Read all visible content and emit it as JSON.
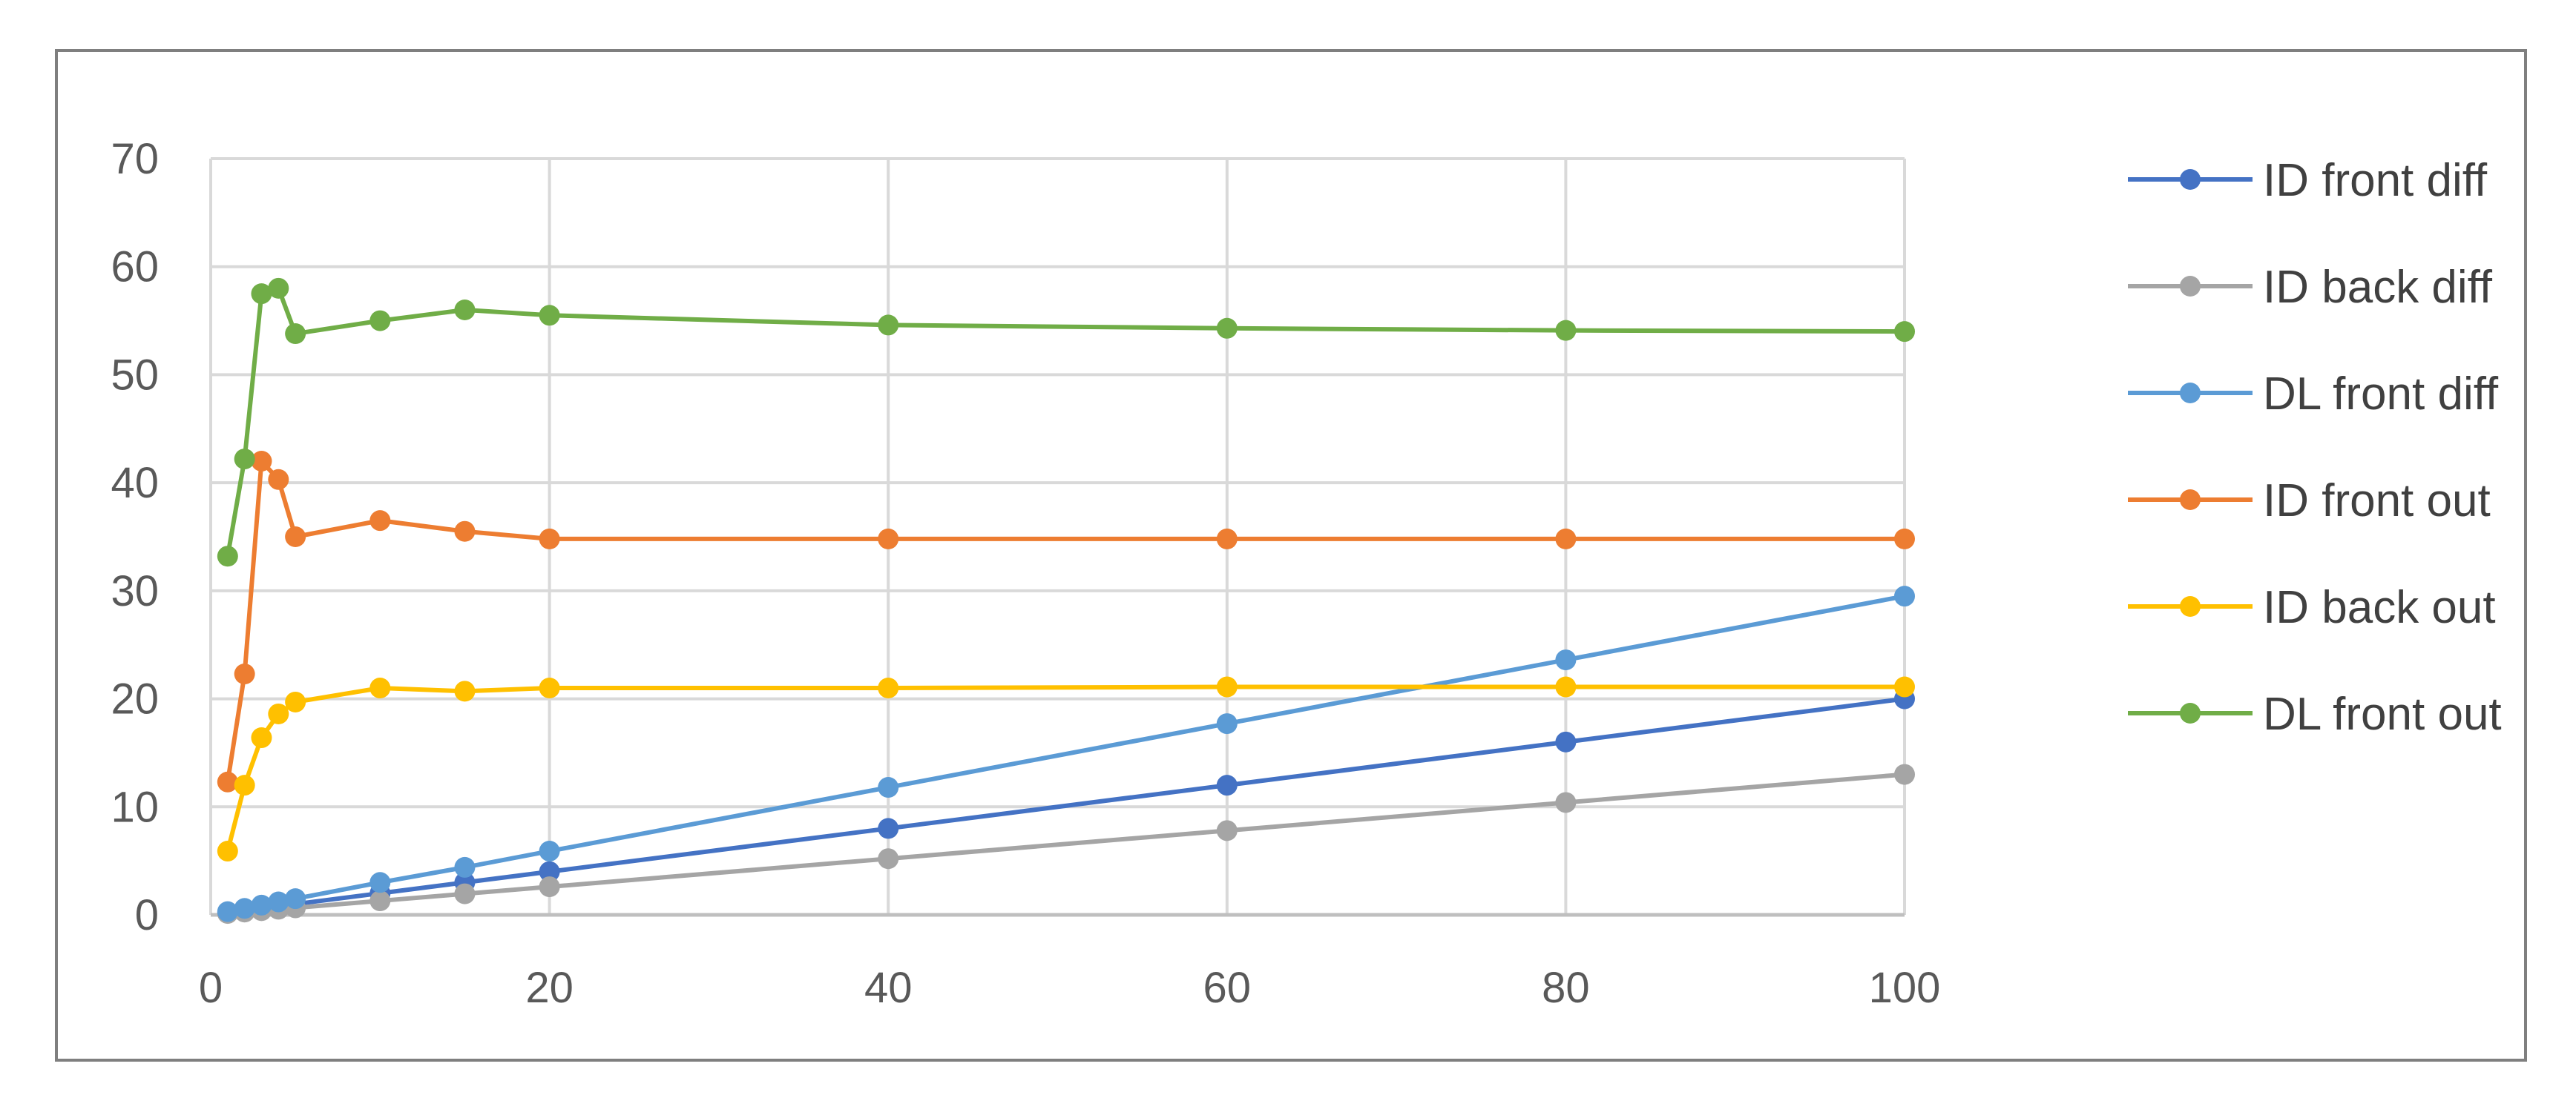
{
  "chart_data": {
    "type": "line",
    "title": "",
    "xlabel": "",
    "ylabel": "",
    "xlim": [
      0,
      100
    ],
    "ylim": [
      0,
      70
    ],
    "x_ticks": [
      0,
      20,
      40,
      60,
      80,
      100
    ],
    "y_ticks": [
      0,
      10,
      20,
      30,
      40,
      50,
      60,
      70
    ],
    "grid": true,
    "legend_position": "right",
    "x": [
      1,
      2,
      3,
      4,
      5,
      10,
      15,
      20,
      40,
      60,
      80,
      100
    ],
    "series": [
      {
        "name": "ID front diff",
        "color": "#4472C4",
        "values": [
          0.2,
          0.4,
          0.6,
          0.8,
          1.0,
          2.0,
          3.0,
          4.0,
          8.0,
          12.0,
          16.0,
          20.0
        ]
      },
      {
        "name": "ID back diff",
        "color": "#A5A5A5",
        "values": [
          0.13,
          0.26,
          0.39,
          0.52,
          0.65,
          1.3,
          1.95,
          2.6,
          5.2,
          7.8,
          10.4,
          13.0
        ]
      },
      {
        "name": "DL front diff",
        "color": "#5B9BD5",
        "values": [
          0.3,
          0.6,
          0.9,
          1.2,
          1.5,
          3.0,
          4.4,
          5.9,
          11.8,
          17.7,
          23.6,
          29.5
        ]
      },
      {
        "name": "ID front out",
        "color": "#ED7D31",
        "values": [
          12.3,
          22.3,
          42.0,
          40.3,
          35.0,
          36.5,
          35.5,
          34.8,
          34.8,
          34.8,
          34.8,
          34.8
        ]
      },
      {
        "name": "ID back out",
        "color": "#FFC000",
        "values": [
          5.9,
          12.0,
          16.4,
          18.6,
          19.7,
          21.0,
          20.7,
          21.0,
          21.0,
          21.1,
          21.1,
          21.1
        ]
      },
      {
        "name": "DL front out",
        "color": "#70AD47",
        "values": [
          33.2,
          42.2,
          57.5,
          58.0,
          53.8,
          55.0,
          56.0,
          55.5,
          54.6,
          54.3,
          54.1,
          54.0
        ]
      }
    ]
  }
}
